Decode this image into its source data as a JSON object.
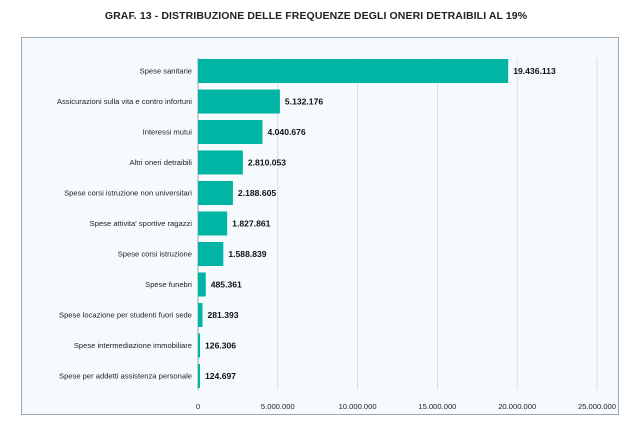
{
  "chart_data": {
    "type": "bar",
    "orientation": "horizontal",
    "title": "GRAF. 13 - DISTRIBUZIONE DELLE FREQUENZE DEGLI ONERI DETRAIBILI AL 19%",
    "categories": [
      "Spese sanitarie",
      "Assicurazioni sulla vita e contro infortuni",
      "Interessi mutui",
      "Altri oneri detraibili",
      "Spese corsi istruzione non universitari",
      "Spese attivita' sportive ragazzi",
      "Spese corsi istruzione",
      "Spese funebri",
      "Spese locazione per studenti fuori sede",
      "Spese intermediazione immobiliare",
      "Spese per addetti assistenza personale"
    ],
    "values": [
      19436113,
      5132176,
      4040676,
      2810053,
      2188605,
      1827861,
      1588839,
      485361,
      281393,
      126306,
      124697
    ],
    "value_labels": [
      "19.436.113",
      "5.132.176",
      "4.040.676",
      "2.810.053",
      "2.188.605",
      "1.827.861",
      "1.588.839",
      "485.361",
      "281.393",
      "126.306",
      "124.697"
    ],
    "xlim": [
      0,
      25000000
    ],
    "xticks": [
      0,
      5000000,
      10000000,
      15000000,
      20000000,
      25000000
    ],
    "xtick_labels": [
      "0",
      "5.000.000",
      "10.000.000",
      "15.000.000",
      "20.000.000",
      "25.000.000"
    ],
    "bar_color": "#00b5a4",
    "grid": true,
    "legend": false
  }
}
